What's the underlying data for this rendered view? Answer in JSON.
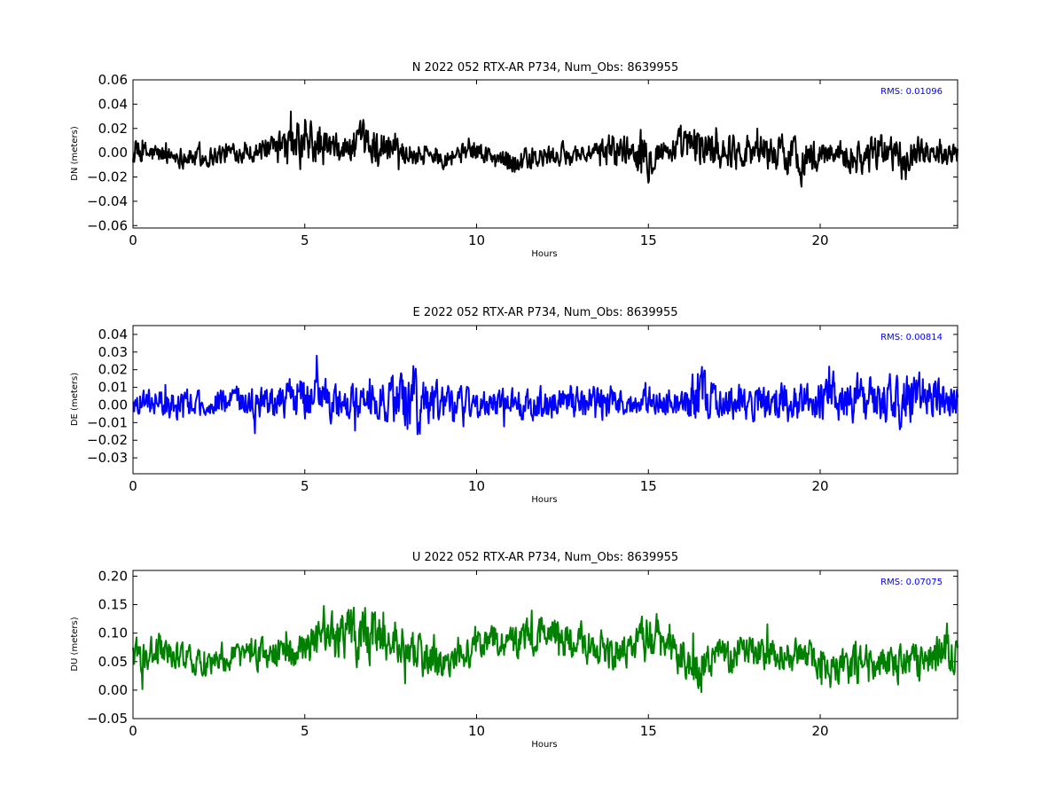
{
  "chart_data": [
    {
      "type": "line",
      "title": "N 2022 052 RTX-AR  P734, Num_Obs: 8639955",
      "xlabel": "Hours",
      "ylabel": "DN (meters)",
      "xlim": [
        0,
        24
      ],
      "ylim": [
        -0.062,
        0.06
      ],
      "xticks": [
        0,
        5,
        10,
        15,
        20
      ],
      "yticks": [
        -0.06,
        -0.04,
        -0.02,
        0.0,
        0.02,
        0.04,
        0.06
      ],
      "ytick_labels": [
        "−0.06",
        "−0.04",
        "−0.02",
        "0.00",
        "0.02",
        "0.04",
        "0.06"
      ],
      "rms_label": "RMS:  0.01096",
      "rms": 0.01096,
      "color": "#000000",
      "annotation_color": "#0000ff",
      "grid": false,
      "series": [
        {
          "x": [
            0,
            1,
            2,
            3,
            4,
            4.7,
            5.2,
            6,
            6.5,
            7,
            7.5,
            8,
            9,
            10,
            10.5,
            11,
            11.5,
            12,
            13,
            13.5,
            14,
            14.5,
            15,
            15.5,
            16,
            16.5,
            17,
            18,
            18.5,
            19,
            19.5,
            20,
            20.5,
            21,
            21.5,
            22,
            22.5,
            23,
            24
          ],
          "center": [
            0,
            -0.002,
            -0.004,
            0.001,
            0.002,
            0.005,
            0.006,
            0.002,
            0.005,
            0.006,
            0.004,
            0,
            -0.002,
            0.001,
            -0.004,
            -0.006,
            -0.007,
            -0.004,
            0,
            -0.001,
            0.004,
            0.002,
            0,
            0.002,
            0.004,
            0.006,
            0.002,
            0.003,
            0.001,
            -0.001,
            -0.005,
            -0.003,
            0.002,
            -0.003,
            -0.002,
            0.001,
            -0.001,
            0.002,
            0
          ],
          "amplitude": [
            0.012,
            0.009,
            0.01,
            0.009,
            0.01,
            0.022,
            0.024,
            0.012,
            0.018,
            0.02,
            0.016,
            0.011,
            0.01,
            0.009,
            0.011,
            0.012,
            0.011,
            0.01,
            0.009,
            0.009,
            0.017,
            0.012,
            0.022,
            0.01,
            0.018,
            0.02,
            0.016,
            0.015,
            0.017,
            0.016,
            0.021,
            0.012,
            0.01,
            0.017,
            0.018,
            0.015,
            0.014,
            0.012,
            0.01
          ]
        }
      ]
    },
    {
      "type": "line",
      "title": "E 2022 052 RTX-AR  P734, Num_Obs: 8639955",
      "xlabel": "Hours",
      "ylabel": "DE (meters)",
      "xlim": [
        0,
        24
      ],
      "ylim": [
        -0.039,
        0.045
      ],
      "xticks": [
        0,
        5,
        10,
        15,
        20
      ],
      "yticks": [
        -0.03,
        -0.02,
        -0.01,
        0.0,
        0.01,
        0.02,
        0.03,
        0.04
      ],
      "ytick_labels": [
        "−0.03",
        "−0.02",
        "−0.01",
        "0.00",
        "0.01",
        "0.02",
        "0.03",
        "0.04"
      ],
      "rms_label": "RMS:  0.00814",
      "rms": 0.00814,
      "color": "#0000ff",
      "annotation_color": "#0000ff",
      "grid": false,
      "series": [
        {
          "x": [
            0,
            1,
            2,
            3,
            4,
            4.5,
            5,
            5.5,
            6,
            6.5,
            7,
            7.5,
            8,
            8.3,
            8.7,
            9,
            10,
            11,
            12,
            13,
            13.5,
            14,
            14.5,
            15,
            15.5,
            16,
            16.4,
            16.8,
            17,
            18,
            18.5,
            19,
            19.5,
            20,
            20.5,
            21,
            21.5,
            22,
            22.5,
            23,
            23.5,
            24
          ],
          "center": [
            0.002,
            0.001,
            0,
            0.002,
            0.002,
            0.003,
            0.004,
            0.003,
            0,
            0.001,
            0.003,
            0.004,
            0.002,
            0,
            -0.002,
            0,
            0.001,
            0,
            0.001,
            0.002,
            0.001,
            0.001,
            0.002,
            0.003,
            0.002,
            0.001,
            0.004,
            0.002,
            0,
            0.001,
            0.002,
            0.003,
            0.001,
            0.002,
            0.003,
            0.002,
            0.004,
            0.004,
            0.003,
            0.005,
            0.002,
            0.003
          ],
          "amplitude": [
            0.008,
            0.009,
            0.008,
            0.008,
            0.01,
            0.012,
            0.015,
            0.013,
            0.011,
            0.012,
            0.013,
            0.014,
            0.02,
            0.022,
            0.016,
            0.011,
            0.009,
            0.009,
            0.01,
            0.01,
            0.013,
            0.011,
            0.008,
            0.009,
            0.008,
            0.009,
            0.02,
            0.014,
            0.009,
            0.01,
            0.012,
            0.013,
            0.012,
            0.011,
            0.013,
            0.016,
            0.014,
            0.015,
            0.016,
            0.015,
            0.013,
            0.011
          ]
        }
      ]
    },
    {
      "type": "line",
      "title": "U 2022 052 RTX-AR  P734, Num_Obs: 8639955",
      "xlabel": "Hours",
      "ylabel": "DU (meters)",
      "xlim": [
        0,
        24
      ],
      "ylim": [
        -0.05,
        0.21
      ],
      "xticks": [
        0,
        5,
        10,
        15,
        20
      ],
      "yticks": [
        -0.05,
        0.0,
        0.05,
        0.1,
        0.15,
        0.2
      ],
      "ytick_labels": [
        "−0.05",
        "0.00",
        "0.05",
        "0.10",
        "0.15",
        "0.20"
      ],
      "rms_label": "RMS:  0.07075",
      "rms": 0.07075,
      "color": "#008000",
      "annotation_color": "#0000ff",
      "grid": false,
      "series": [
        {
          "x": [
            0,
            1,
            2,
            3,
            4,
            5,
            5.5,
            6,
            6.5,
            7,
            7.5,
            8,
            8.5,
            9,
            9.5,
            10,
            10.5,
            11,
            11.5,
            12,
            13,
            13.5,
            14,
            14.5,
            15,
            15.5,
            16,
            16.5,
            17,
            17.5,
            18,
            18.5,
            19,
            19.5,
            20,
            20.5,
            21,
            21.5,
            22,
            22.5,
            23,
            23.5,
            24
          ],
          "center": [
            0.06,
            0.065,
            0.05,
            0.06,
            0.065,
            0.07,
            0.08,
            0.095,
            0.1,
            0.095,
            0.09,
            0.07,
            0.055,
            0.045,
            0.06,
            0.075,
            0.085,
            0.08,
            0.09,
            0.095,
            0.09,
            0.08,
            0.055,
            0.075,
            0.09,
            0.08,
            0.05,
            0.04,
            0.055,
            0.065,
            0.07,
            0.065,
            0.06,
            0.055,
            0.045,
            0.04,
            0.045,
            0.05,
            0.05,
            0.04,
            0.045,
            0.065,
            0.06
          ],
          "amplitude": [
            0.035,
            0.03,
            0.025,
            0.03,
            0.03,
            0.035,
            0.045,
            0.05,
            0.055,
            0.05,
            0.045,
            0.04,
            0.035,
            0.035,
            0.03,
            0.03,
            0.035,
            0.03,
            0.035,
            0.04,
            0.035,
            0.035,
            0.03,
            0.03,
            0.045,
            0.04,
            0.04,
            0.04,
            0.035,
            0.035,
            0.035,
            0.035,
            0.035,
            0.035,
            0.03,
            0.03,
            0.04,
            0.03,
            0.03,
            0.035,
            0.035,
            0.04,
            0.035
          ]
        }
      ]
    }
  ]
}
